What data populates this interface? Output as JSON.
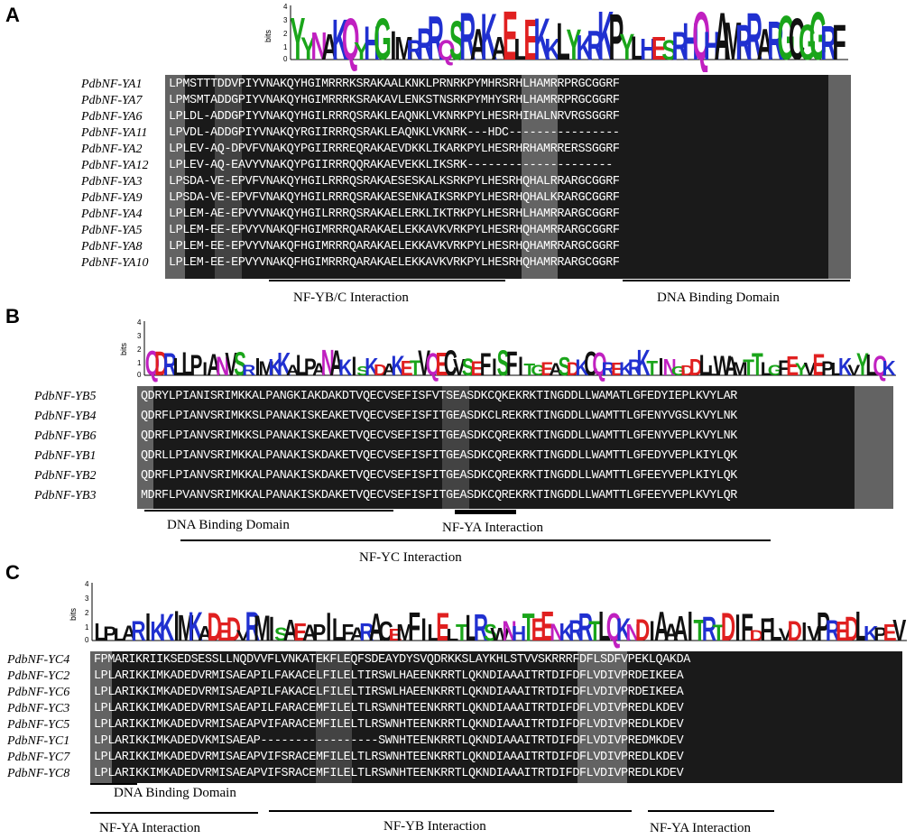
{
  "panels": [
    {
      "letter": "A",
      "logo_text": "YYNAKQYHGIMRRRQSRAKAELEKKLYKRKPYLHESRHQHAMRRARGCGGRF",
      "axis_unit": "bits",
      "ticks": [
        "4",
        "3",
        "2",
        "1",
        "0"
      ],
      "rows": [
        {
          "name": "PdbNF-YA1",
          "seq": "LPMSTTTDDVPIYVNAKQYHGIMRRRKSRAKAALKNKLPRNRKPYMHRSRHLHAMRRPRGCGGRF"
        },
        {
          "name": "PdbNF-YA7",
          "seq": "LPMSMTADDGPIYVNAKQYHGIMRRRKSRAKAVLENKSTNSRKPYMHYSRHLHAMRRPRGCGGRF"
        },
        {
          "name": "PdbNF-YA6",
          "seq": "LPLDL-ADDGPIYVNAKQYHGILRRRQSRAKLEAQNKLVKNRKPYLHESRHIHALNRVRGSGGRF"
        },
        {
          "name": "PdbNF-YA11",
          "seq": "LPVDL-ADDGPIYVNAKQYRGIIRRRQSRAKLEAQNKLVKNRK---HDC----------------"
        },
        {
          "name": "PdbNF-YA2",
          "seq": "LPLEV-AQ-DPVFVNAKQYPGIIRRREQRAKAEVDKKLIKARKPYLHESRHRHAMRRERSSGGRF"
        },
        {
          "name": "PdbNF-YA12",
          "seq": "LPLEV-AQ-EAVYVNAKQYPGIIRRRQQRAKAEVEKKLIKSRK---------------------"
        },
        {
          "name": "PdbNF-YA3",
          "seq": "LPSDA-VE-EPVFVNAKQYHGILRRRQSRAKAESESKALKSRKPYLHESRHQHALRRARGCGGRF"
        },
        {
          "name": "PdbNF-YA9",
          "seq": "LPSDA-VE-EPVFVNAKQYHGILRRRQSRAKAESENKAIKSRKPYLHESRHQHALKRARGCGGRF"
        },
        {
          "name": "PdbNF-YA4",
          "seq": "LPLEM-AE-EPVYVNAKQYHGILRRRQSRAKAELERKLIKTRKPYLHESRHLHAMRRARGCGGRF"
        },
        {
          "name": "PdbNF-YA5",
          "seq": "LPLEM-EE-EPVYVNAKQFHGIMRRRQARAKAELEKKAVKVRKPYLHESRHQHAMRRARGCGGRF"
        },
        {
          "name": "PdbNF-YA8",
          "seq": "LPLEM-EE-EPVYVNAKQFHGIMRRRQARAKAELEKKAVKVRKPYLHESRHQHAMRRARGCGGRF"
        },
        {
          "name": "PdbNF-YA10",
          "seq": "LPLEM-EE-EPVYVNAKQFHGIMRRRQARAKAELEKKAVKVRKPYLHESRHQHAMRRARGCGGRF"
        }
      ],
      "domains": [
        {
          "label": "NF-YB/C Interaction"
        },
        {
          "label": "DNA Binding Domain"
        }
      ]
    },
    {
      "letter": "B",
      "logo_text": "QDRLLPIANVSRIMKKALPANAKISKDAKETVQECVSEFISFITGEASDKCQREKRKTINGDDLLWAMTTLGFEYVEPLKVYLQK",
      "axis_unit": "bits",
      "ticks": [
        "4",
        "3",
        "2",
        "1",
        "0"
      ],
      "rows": [
        {
          "name": "PdbNF-YB5",
          "seq": "QDRYLPIANISRIMKKALPANGKIAKDAKDTVQECVSEFISFVTSEASDKCQKEKRKTINGDDLLWAMATLGFEDYIEPLKVYLAR"
        },
        {
          "name": "PdbNF-YB4",
          "seq": "QDRFLPIANVSRIMKKSLPANAKISKEAKETVQECVSEFISFITGEASDKCLREKRKTINGDDLLWAMTTLGFENYVGSLKVYLNK"
        },
        {
          "name": "PdbNF-YB6",
          "seq": "QDRFLPIANVSRIMKKSLPANAKISKEAKETVQECVSEFISFITGEASDKCQREKRKTINGDDLLWAMTTLGFENYVEPLKVYLNK"
        },
        {
          "name": "PdbNF-YB1",
          "seq": "QDRLLPIANVSRIMKKALPANAKISKDAKETVQECVSEFISFITGEASDKCQREKRKTINGDDLLWAMTTLGFEDYVEPLKIYLQK"
        },
        {
          "name": "PdbNF-YB2",
          "seq": "QDRFLPIANVSRIMKKALPANAKISKDAKETVQECVSEFISFITGEASDKCQREKRKTINGDDLLWAMTTLGFEEYVEPLKIYLQK"
        },
        {
          "name": "PdbNF-YB3",
          "seq": "MDRFLPVANVSRIMKKALPANAKISKDAKETVQECVSEFISFITGEASDKCQREKRKTINGDDLLWAMTTLGFEEYVEPLKVYLQR"
        }
      ],
      "domains": [
        {
          "label": "DNA Binding Domain"
        },
        {
          "label": "NF-YA Interaction"
        },
        {
          "label": "NF-YC Interaction"
        }
      ]
    },
    {
      "letter": "C",
      "logo_text": "LPLARIKKIMKADEDVRMISAEAPILFARACEMFILELTLRSWNHTEENKRRTLQKNDIAAAITRTDIFDFLVDIVPREDLKPEV",
      "axis_unit": "bits",
      "ticks": [
        "4",
        "3",
        "2",
        "1",
        "0"
      ],
      "rows": [
        {
          "name": "PdbNF-YC4",
          "seq": "FPMARIKRIIKSEDSESSLLNQDVVFLVNKATEKFLEQFSDEAYDYSVQDRKKSLAYKHLSTVVSKRRRFDFLSDFVPEKLQAKDA"
        },
        {
          "name": "PdbNF-YC2",
          "seq": "LPLARIKKIMKADEDVRMISAEAPILFAKACELFILELTIRSWLHAEENKRRTLQKNDIAAAITRTDIFDFLVDIVPRDEIKEEA"
        },
        {
          "name": "PdbNF-YC6",
          "seq": "LPLARIKKIMKADEDVRMISAEAPILFAKACELFILELTIRSWLHAEENKRRTLQKNDIAAAITRTDIFDFLVDIVPRDEIKEEA"
        },
        {
          "name": "PdbNF-YC3",
          "seq": "LPLARIKKIMKADEDVRMISAEAPILFARACEMFILELTLRSWNHTEENKRRTLQKNDIAAAITRTDIFDFLVDIVPREDLKDEV"
        },
        {
          "name": "PdbNF-YC5",
          "seq": "LPLARIKKIMKADEDVRMISAEAPVIFARACEMFILELTLRSWNHTEENKRRTLQKNDIAAAITRTDIFDFLVDIVPREDLKDEV"
        },
        {
          "name": "PdbNF-YC1",
          "seq": "LPLARIKKIMKADEDVKMISAEAP-----------------SWNHTEENKRRTLQKNDIAAAITRTDIFDFLVDIVPREDMKDEV"
        },
        {
          "name": "PdbNF-YC7",
          "seq": "LPLARIKKIMKADEDVRMISAEAPVIFSRACEMFILELTLRSWNHTEENKRRTLQKNDIAAAITRTDIFDFLVDIVPREDLKDEV"
        },
        {
          "name": "PdbNF-YC8",
          "seq": "LPLARIKKIMKADEDVRMISAEAPVIFSRACEMFILELTLRSWNHTEENKRRTLQKNDIAAAITRTDIFDFLVDIVPREDLKDEV"
        }
      ],
      "domains": [
        {
          "label": "DNA Binding Domain"
        },
        {
          "label": "NF-YA Interaction"
        },
        {
          "label": "NF-YB Interaction"
        },
        {
          "label": "NF-YA Interaction"
        }
      ]
    }
  ],
  "logo_colors": {
    "hydrophobic": "#111111",
    "polar": "#1aa51a",
    "basic": "#2030d0",
    "acidic": "#e02020",
    "amide": "#c020c0"
  }
}
